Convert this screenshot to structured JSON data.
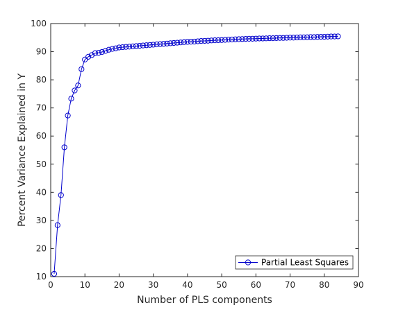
{
  "colors": {
    "series": "#0000cc",
    "axes": "#262626",
    "background": "#ffffff"
  },
  "chart_data": {
    "type": "line",
    "title": "",
    "xlabel": "Number of PLS components",
    "ylabel": "Percent Variance Explained in Y",
    "xlim": [
      0,
      90
    ],
    "ylim": [
      10,
      100
    ],
    "xticks": [
      0,
      10,
      20,
      30,
      40,
      50,
      60,
      70,
      80,
      90
    ],
    "yticks": [
      10,
      20,
      30,
      40,
      50,
      60,
      70,
      80,
      90,
      100
    ],
    "grid": false,
    "box": true,
    "legend": {
      "location": "bottom-right",
      "entries": [
        "Partial Least Squares"
      ]
    },
    "series": [
      {
        "name": "Partial Least Squares",
        "marker": "circle",
        "color": "#0000cc",
        "x": [
          1,
          2,
          3,
          4,
          5,
          6,
          7,
          8,
          9,
          10,
          11,
          12,
          13,
          14,
          15,
          16,
          17,
          18,
          19,
          20,
          21,
          22,
          23,
          24,
          25,
          26,
          27,
          28,
          29,
          30,
          31,
          32,
          33,
          34,
          35,
          36,
          37,
          38,
          39,
          40,
          41,
          42,
          43,
          44,
          45,
          46,
          47,
          48,
          49,
          50,
          51,
          52,
          53,
          54,
          55,
          56,
          57,
          58,
          59,
          60,
          61,
          62,
          63,
          64,
          65,
          66,
          67,
          68,
          69,
          70,
          71,
          72,
          73,
          74,
          75,
          76,
          77,
          78,
          79,
          80,
          81,
          82,
          83,
          84
        ],
        "y": [
          11.0,
          28.3,
          39.0,
          56.0,
          67.3,
          73.3,
          76.2,
          78.0,
          83.8,
          87.2,
          88.2,
          88.8,
          89.5,
          89.6,
          89.9,
          90.3,
          90.7,
          91.0,
          91.2,
          91.5,
          91.6,
          91.7,
          91.8,
          91.9,
          92.0,
          92.1,
          92.2,
          92.3,
          92.4,
          92.5,
          92.6,
          92.7,
          92.8,
          92.9,
          93.0,
          93.1,
          93.2,
          93.3,
          93.4,
          93.5,
          93.55,
          93.6,
          93.7,
          93.8,
          93.85,
          93.9,
          94.0,
          94.05,
          94.1,
          94.15,
          94.2,
          94.3,
          94.35,
          94.4,
          94.45,
          94.5,
          94.55,
          94.6,
          94.6,
          94.65,
          94.7,
          94.7,
          94.75,
          94.8,
          94.8,
          94.85,
          94.9,
          94.9,
          94.95,
          95.0,
          95.0,
          95.05,
          95.1,
          95.1,
          95.15,
          95.2,
          95.2,
          95.25,
          95.3,
          95.3,
          95.35,
          95.4,
          95.4,
          95.45
        ]
      }
    ]
  }
}
